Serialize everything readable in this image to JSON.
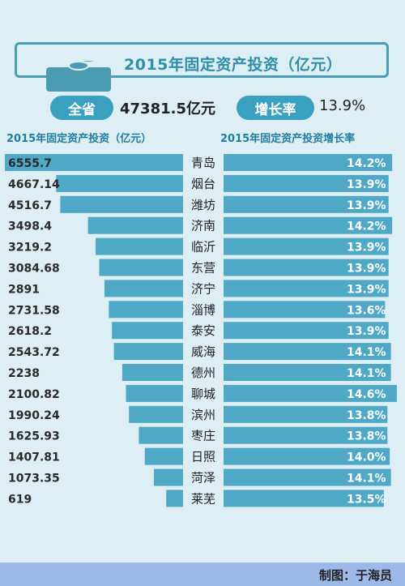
{
  "header": {
    "title": "2015年固定资产投资（亿元）"
  },
  "summary": {
    "total_label": "全省",
    "total_value": "47381.5亿元",
    "growth_label": "增长率",
    "growth_value": "13.9%"
  },
  "chart_data": {
    "type": "bar",
    "categories": [
      "青岛",
      "烟台",
      "潍坊",
      "济南",
      "临沂",
      "东营",
      "济宁",
      "淄博",
      "泰安",
      "威海",
      "德州",
      "聊城",
      "滨州",
      "枣庄",
      "日照",
      "菏泽",
      "莱芜"
    ],
    "series": [
      {
        "name": "2015年固定资产投资（亿元）",
        "values": [
          6555.7,
          4667.14,
          4516.7,
          3498.4,
          3219.2,
          3084.68,
          2891,
          2731.58,
          2618.2,
          2543.72,
          2238,
          2100.82,
          1990.24,
          1625.93,
          1407.81,
          1073.35,
          619
        ],
        "labels": [
          "6555.7",
          "4667.14",
          "4516.7",
          "3498.4",
          "3219.2",
          "3084.68",
          "2891",
          "2731.58",
          "2618.2",
          "2543.72",
          "2238",
          "2100.82",
          "1990.24",
          "1625.93",
          "1407.81",
          "1073.35",
          "619"
        ]
      },
      {
        "name": "2015年固定资产投资增长率",
        "values": [
          14.2,
          13.9,
          13.9,
          14.2,
          13.9,
          13.9,
          13.9,
          13.6,
          13.9,
          14.1,
          14.1,
          14.6,
          13.8,
          13.8,
          14.0,
          14.1,
          13.5
        ],
        "labels": [
          "14.2%",
          "13.9%",
          "13.9%",
          "14.2%",
          "13.9%",
          "13.9%",
          "13.9%",
          "13.6%",
          "13.9%",
          "14.1%",
          "14.1%",
          "14.6%",
          "13.8%",
          "13.8%",
          "14.0%",
          "14.1%",
          "13.5%"
        ]
      }
    ],
    "bar_color": "#4ea8c6",
    "growth_range": [
      0,
      14.6
    ]
  },
  "footer": {
    "credit": "制图：于海员"
  }
}
